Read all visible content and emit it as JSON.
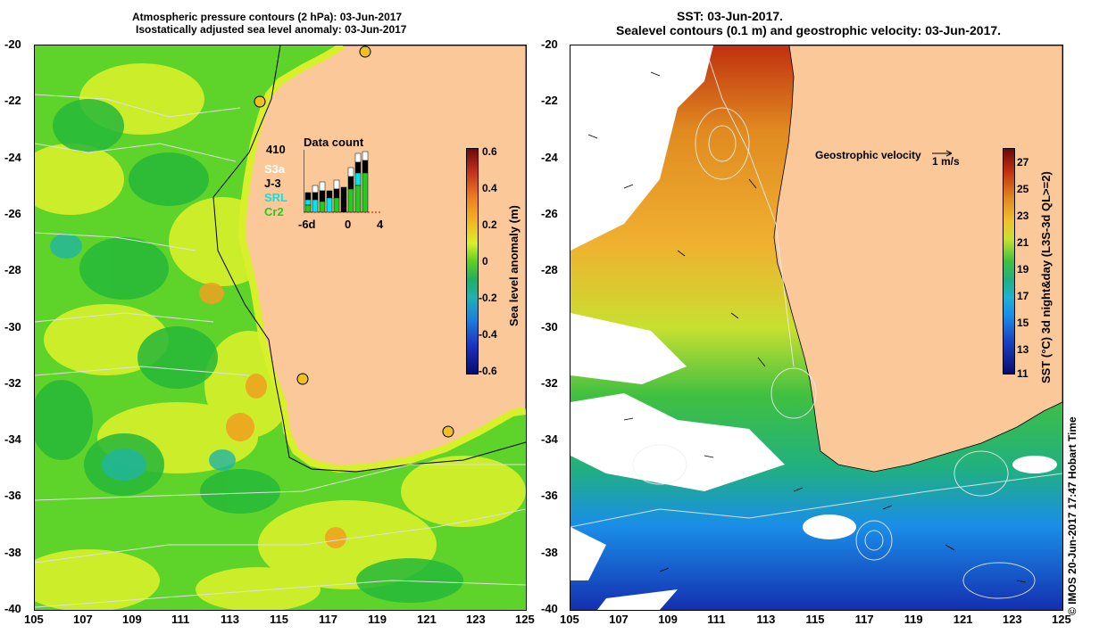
{
  "left_panel": {
    "title_line1": "Atmospheric pressure contours (2 hPa): 03-Jun-2017",
    "title_line2": "Isostatically adjusted sea level anomaly: 03-Jun-2017",
    "colorbar": {
      "label": "Sea level anomaly (m)",
      "ticks": [
        "0.6",
        "0.4",
        "0.2",
        "0",
        "-0.2",
        "-0.4",
        "-0.6"
      ]
    },
    "inset": {
      "title": "Data count",
      "max_count": "410",
      "satellites": [
        {
          "name": "S3a",
          "color": "#ffffff"
        },
        {
          "name": "J-3",
          "color": "#000000"
        },
        {
          "name": "SRL",
          "color": "#00e5ee"
        },
        {
          "name": "Cr2",
          "color": "#22cc22"
        }
      ],
      "x_ticks": [
        "-6d",
        "0",
        "4"
      ]
    }
  },
  "right_panel": {
    "title_line1": "SST: 03-Jun-2017.",
    "title_line2": "Sealevel contours (0.1 m) and geostrophic velocity: 03-Jun-2017.",
    "velocity_label": "Geostrophic velocity",
    "velocity_scale": "1 m/s",
    "colorbar": {
      "label": "SST (°C) 3d night&day (L3S-3d QL>=2)",
      "ticks": [
        "27",
        "25",
        "23",
        "21",
        "19",
        "17",
        "15",
        "13",
        "11"
      ]
    }
  },
  "axes": {
    "y_ticks": [
      "-20",
      "-22",
      "-24",
      "-26",
      "-28",
      "-30",
      "-32",
      "-34",
      "-36",
      "-38",
      "-40"
    ],
    "x_ticks": [
      "105",
      "107",
      "109",
      "111",
      "113",
      "115",
      "117",
      "119",
      "121",
      "123",
      "125"
    ]
  },
  "credit": "© IMOS 20-Jun-2017 17:47 Hobart Time",
  "colors": {
    "land": "#fbc89a",
    "sla_green": "#22c21f",
    "sla_yellow": "#d8f02a",
    "sst_orange": "#e08a20",
    "sst_blue": "#1a8ee8"
  }
}
